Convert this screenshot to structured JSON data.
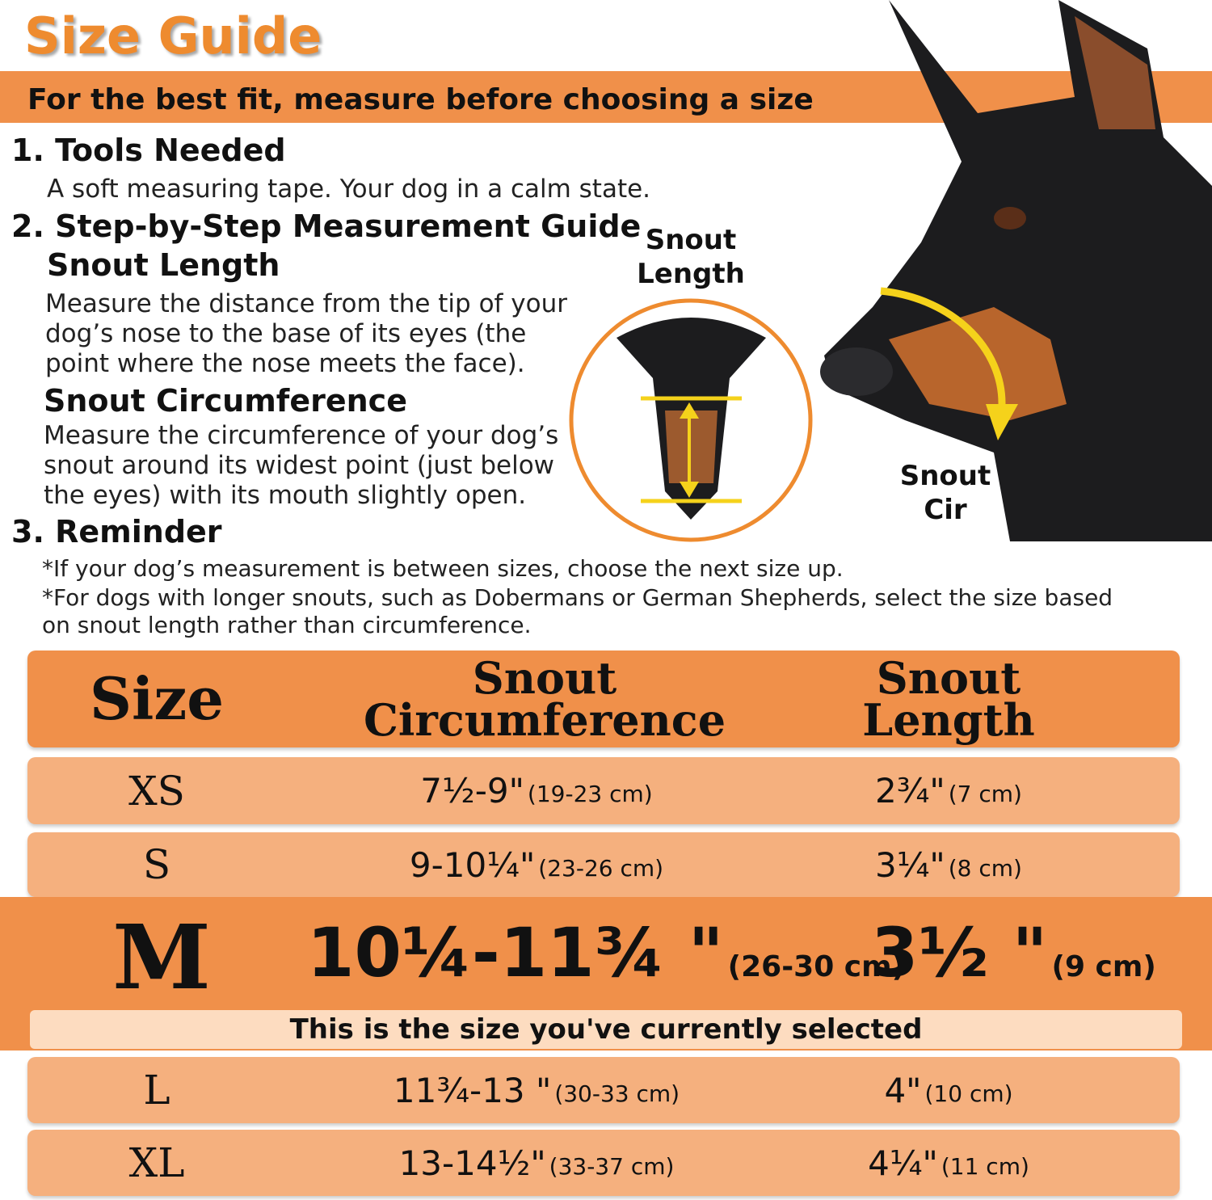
{
  "title": "Size Guide",
  "subtitle": "For the best fit, measure before choosing a size",
  "sections": {
    "tools": {
      "heading": "1. Tools Needed",
      "text": "A soft measuring tape. Your dog in a calm state."
    },
    "guide": {
      "heading": "2. Step-by-Step Measurement Guide",
      "length": {
        "heading": "Snout Length",
        "text": "Measure the distance from the tip of your dog’s nose to the base of its eyes (the point where the nose meets the face)."
      },
      "circ": {
        "heading": "Snout Circumference",
        "text": "Measure the circumference of your dog’s snout around its widest point (just below the eyes) with its mouth slightly open."
      }
    },
    "reminder": {
      "heading": "3. Reminder",
      "line1": "*If your dog’s measurement is between sizes, choose the next size up.",
      "line2": "*For dogs with longer snouts, such as Dobermans or German Shepherds, select the size based on snout length rather than circumference."
    }
  },
  "diagram": {
    "length_label": "Snout Length",
    "cir_label": "Snout Cir"
  },
  "colors": {
    "accent": "#F0904A",
    "row": "#F5B07E",
    "title": "#EE8B2F",
    "selected_caption": "#FDDCC0"
  },
  "table": {
    "headers": [
      "Size",
      "Snout Circumference",
      "Snout Length"
    ],
    "rows": [
      {
        "size": "XS",
        "circ": "7½-9\"",
        "circ_cm": "(19-23 cm)",
        "len": "2¾\"",
        "len_cm": "(7 cm)"
      },
      {
        "size": "S",
        "circ": "9-10¼\"",
        "circ_cm": "(23-26 cm)",
        "len": "3¼\"",
        "len_cm": "(8 cm)"
      },
      {
        "size": "M",
        "circ": "10¼-11¾ \"",
        "circ_cm": "(26-30 cm)",
        "len": "3½ \"",
        "len_cm": "(9 cm)",
        "selected": true
      },
      {
        "size": "L",
        "circ": "11¾-13 \"",
        "circ_cm": "(30-33 cm)",
        "len": "4\"",
        "len_cm": "(10 cm)"
      },
      {
        "size": "XL",
        "circ": "13-14½\"",
        "circ_cm": "(33-37 cm)",
        "len": "4¼\"",
        "len_cm": "(11 cm)"
      }
    ],
    "selected_caption": "This is the size you've currently selected"
  }
}
